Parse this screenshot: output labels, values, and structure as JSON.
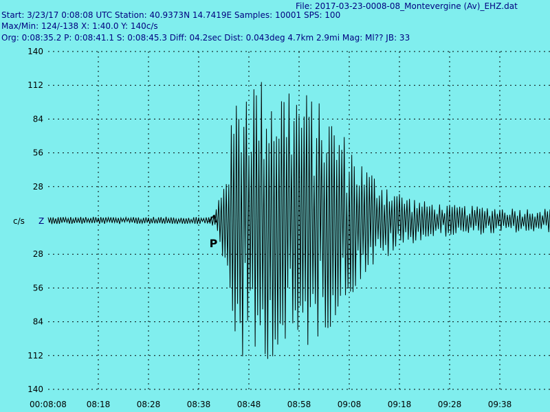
{
  "header": {
    "file_line": "File: 2017-03-23-0008-08_Montevergine (Av)_EHZ.dat",
    "start_line": "Start: 3/23/17  0:08:08 UTC Station:  40.9373N 14.7419E Samples: 10001  SPS: 100",
    "maxmin_line": "Max/Min:  124/-138 X: 1:40.0 Y: 140c/s",
    "org_line": "Org: 0:08:35.2 P: 0:08:41.1 S: 0:08:45.3 Diff: 04.2sec Dist: 0.043deg 4.7km 2.9mi  Mag: Ml?? JB: 33"
  },
  "colors": {
    "background": "#80eeee",
    "trace": "#000000",
    "header_text": "#00007f",
    "grid": "#000000"
  },
  "chart_data": {
    "type": "line",
    "title": "File: 2017-03-23-0008-08_Montevergine (Av)_EHZ.dat",
    "units_label": "c/s",
    "component_label": "Z",
    "grid": true,
    "ylim": [
      -140,
      140
    ],
    "y_ticks": [
      140,
      112,
      84,
      56,
      28,
      0,
      -28,
      -56,
      -84,
      -112,
      -140
    ],
    "y_tick_labels": [
      "140",
      "112",
      "84",
      "56",
      "28",
      "",
      "28",
      "56",
      "84",
      "112",
      "140"
    ],
    "xlim_seconds": [
      0,
      100
    ],
    "x_ticks_seconds": [
      0,
      10,
      20,
      30,
      40,
      50,
      60,
      70,
      80,
      90
    ],
    "x_tick_labels": [
      "00:08:08",
      "08:18",
      "08:28",
      "08:38",
      "08:48",
      "08:58",
      "09:08",
      "09:18",
      "09:28",
      "09:38"
    ],
    "phase_pick": {
      "label": "P",
      "time_seconds": 33.1
    },
    "series": [
      {
        "x_step_seconds": 0.25,
        "envelope": [
          [
            0,
            3
          ],
          [
            10,
            3
          ],
          [
            20,
            3
          ],
          [
            30,
            3
          ],
          [
            32,
            3
          ],
          [
            33.1,
            5
          ],
          [
            34,
            20
          ],
          [
            35,
            40
          ],
          [
            36,
            65
          ],
          [
            37,
            95
          ],
          [
            38,
            115
          ],
          [
            39,
            120
          ],
          [
            40,
            124
          ],
          [
            42,
            120
          ],
          [
            44,
            115
          ],
          [
            46,
            112
          ],
          [
            48,
            118
          ],
          [
            50,
            110
          ],
          [
            52,
            106
          ],
          [
            54,
            98
          ],
          [
            56,
            90
          ],
          [
            58,
            78
          ],
          [
            60,
            66
          ],
          [
            62,
            52
          ],
          [
            64,
            42
          ],
          [
            66,
            36
          ],
          [
            68,
            30
          ],
          [
            70,
            24
          ],
          [
            72,
            20
          ],
          [
            75,
            16
          ],
          [
            80,
            13
          ],
          [
            85,
            12
          ],
          [
            90,
            11
          ],
          [
            95,
            10
          ],
          [
            100,
            10
          ]
        ]
      }
    ]
  }
}
